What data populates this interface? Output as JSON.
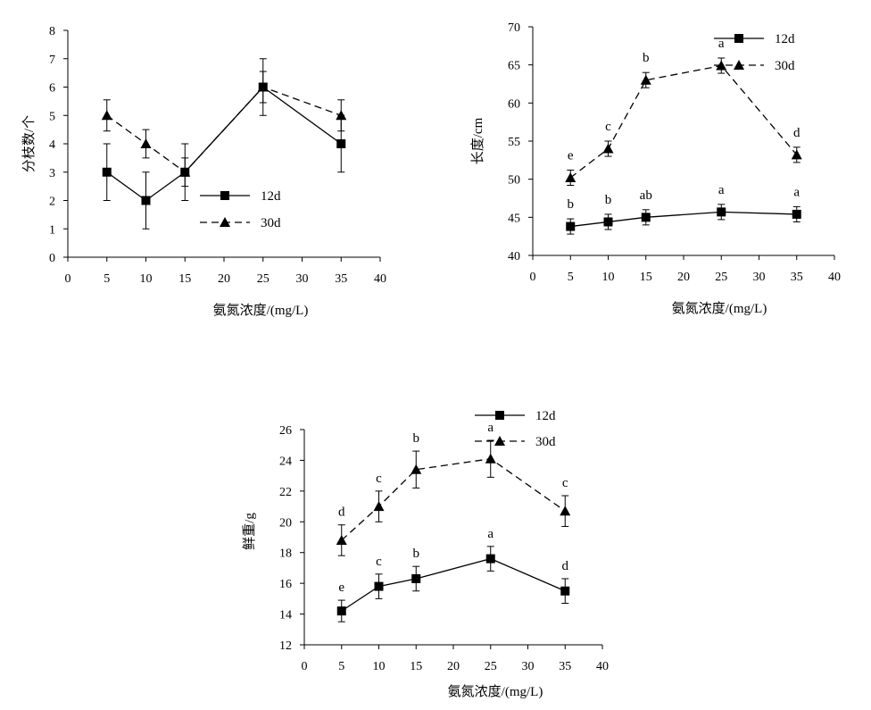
{
  "chart_data": [
    {
      "type": "line",
      "xlabel": "氨氮浓度/(mg/L)",
      "ylabel": "分枝数/个",
      "xlim": [
        0,
        40
      ],
      "ylim": [
        0,
        8
      ],
      "xticks": [
        0,
        5,
        10,
        15,
        20,
        25,
        30,
        35,
        40
      ],
      "yticks": [
        0,
        1,
        2,
        3,
        4,
        5,
        6,
        7,
        8
      ],
      "x": [
        5,
        10,
        15,
        25,
        35
      ],
      "legend": "lower-right",
      "grid": false,
      "series": [
        {
          "name": "12d",
          "marker": "square",
          "dash": "solid",
          "values": [
            3,
            2,
            3,
            6,
            4
          ],
          "errors": [
            1,
            1,
            1,
            1,
            1
          ],
          "letters": []
        },
        {
          "name": "30d",
          "marker": "triangle",
          "dash": "dashed",
          "values": [
            5,
            4,
            3,
            6,
            5
          ],
          "errors": [
            0.55,
            0.5,
            0.5,
            0.55,
            0.55
          ],
          "letters": []
        }
      ]
    },
    {
      "type": "line",
      "xlabel": "氨氮浓度/(mg/L)",
      "ylabel": "长度/cm",
      "xlim": [
        0,
        40
      ],
      "ylim": [
        40,
        70
      ],
      "xticks": [
        0,
        5,
        10,
        15,
        20,
        25,
        30,
        35,
        40
      ],
      "yticks": [
        40,
        45,
        50,
        55,
        60,
        65,
        70
      ],
      "x": [
        5,
        10,
        15,
        25,
        35
      ],
      "legend": "top-right",
      "grid": false,
      "series": [
        {
          "name": "12d",
          "marker": "square",
          "dash": "solid",
          "values": [
            43.8,
            44.4,
            45.0,
            45.7,
            45.4
          ],
          "errors": [
            1.0,
            1.0,
            1.0,
            1.0,
            1.0
          ],
          "letters": [
            "b",
            "b",
            "ab",
            "a",
            "a"
          ]
        },
        {
          "name": "30d",
          "marker": "triangle",
          "dash": "dashed",
          "values": [
            50.2,
            54.0,
            63.0,
            64.9,
            53.2
          ],
          "errors": [
            1.0,
            1.0,
            1.0,
            1.0,
            1.0
          ],
          "letters": [
            "e",
            "c",
            "b",
            "a",
            "d"
          ]
        }
      ]
    },
    {
      "type": "line",
      "xlabel": "氨氮浓度/(mg/L)",
      "ylabel": "鲜重/g",
      "xlim": [
        0,
        40
      ],
      "ylim": [
        12,
        26
      ],
      "xticks": [
        0,
        5,
        10,
        15,
        20,
        25,
        30,
        35,
        40
      ],
      "yticks": [
        12,
        14,
        16,
        18,
        20,
        22,
        24,
        26
      ],
      "x": [
        5,
        10,
        15,
        25,
        35
      ],
      "legend": "top-right",
      "grid": false,
      "series": [
        {
          "name": "12d",
          "marker": "square",
          "dash": "solid",
          "values": [
            14.2,
            15.8,
            16.3,
            17.6,
            15.5
          ],
          "errors": [
            0.7,
            0.8,
            0.8,
            0.8,
            0.8
          ],
          "letters": [
            "e",
            "c",
            "b",
            "a",
            "d"
          ]
        },
        {
          "name": "30d",
          "marker": "triangle",
          "dash": "dashed",
          "values": [
            18.8,
            21.0,
            23.4,
            24.1,
            20.7
          ],
          "errors": [
            1.0,
            1.0,
            1.2,
            1.2,
            1.0
          ],
          "letters": [
            "d",
            "c",
            "b",
            "a",
            "c"
          ]
        }
      ]
    }
  ]
}
